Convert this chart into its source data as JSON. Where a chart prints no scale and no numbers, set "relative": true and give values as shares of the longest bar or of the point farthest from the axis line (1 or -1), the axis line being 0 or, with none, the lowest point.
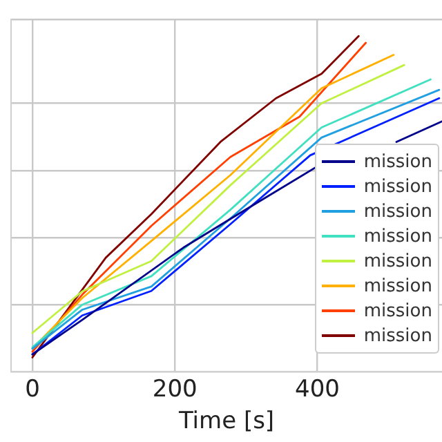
{
  "chart_data": {
    "type": "line",
    "xlabel": "Time [s]",
    "relative": true,
    "xlim": [
      -30,
      575
    ],
    "xticks": [
      0,
      200,
      400
    ],
    "grid": true,
    "legend": "right",
    "marker": "none",
    "line_style": "solid",
    "series": [
      {
        "name": "mission",
        "color": "#00008b",
        "x": [
          0,
          70,
          212,
          289,
          400,
          410,
          511,
          575
        ],
        "values": [
          0.052,
          0.155,
          0.37,
          0.47,
          0.612,
          null,
          0.685,
          0.746
        ]
      },
      {
        "name": "mission",
        "color": "#0020ff",
        "x": [
          0,
          70,
          167,
          278,
          390,
          571
        ],
        "values": [
          0.052,
          0.168,
          0.241,
          0.44,
          0.645,
          0.815
        ]
      },
      {
        "name": "mission",
        "color": "#20a0e0",
        "x": [
          0,
          70,
          167,
          278,
          406,
          571
        ],
        "values": [
          0.069,
          0.185,
          0.254,
          0.457,
          0.698,
          0.84
        ]
      },
      {
        "name": "mission",
        "color": "#40e0c0",
        "x": [
          0,
          70,
          167,
          278,
          406,
          559
        ],
        "values": [
          0.073,
          0.2,
          0.285,
          0.483,
          0.728,
          0.871
        ]
      },
      {
        "name": "mission",
        "color": "#c0f040",
        "x": [
          0,
          70,
          167,
          278,
          406,
          522
        ],
        "values": [
          0.116,
          0.24,
          0.33,
          0.556,
          0.8,
          0.914
        ]
      },
      {
        "name": "mission",
        "color": "#ffb000",
        "x": [
          0,
          70,
          167,
          278,
          406,
          507
        ],
        "values": [
          0.07,
          0.22,
          0.39,
          0.586,
          0.845,
          0.944
        ]
      },
      {
        "name": "mission",
        "color": "#ff4000",
        "x": [
          0,
          70,
          167,
          278,
          375,
          468
        ],
        "values": [
          0.06,
          0.23,
          0.435,
          0.64,
          0.76,
          0.98
        ]
      },
      {
        "name": "mission",
        "color": "#800000",
        "x": [
          0,
          103,
          167,
          264,
          342,
          406,
          458
        ],
        "values": [
          0.043,
          0.34,
          0.47,
          0.685,
          0.815,
          0.888,
          1
        ]
      }
    ]
  }
}
